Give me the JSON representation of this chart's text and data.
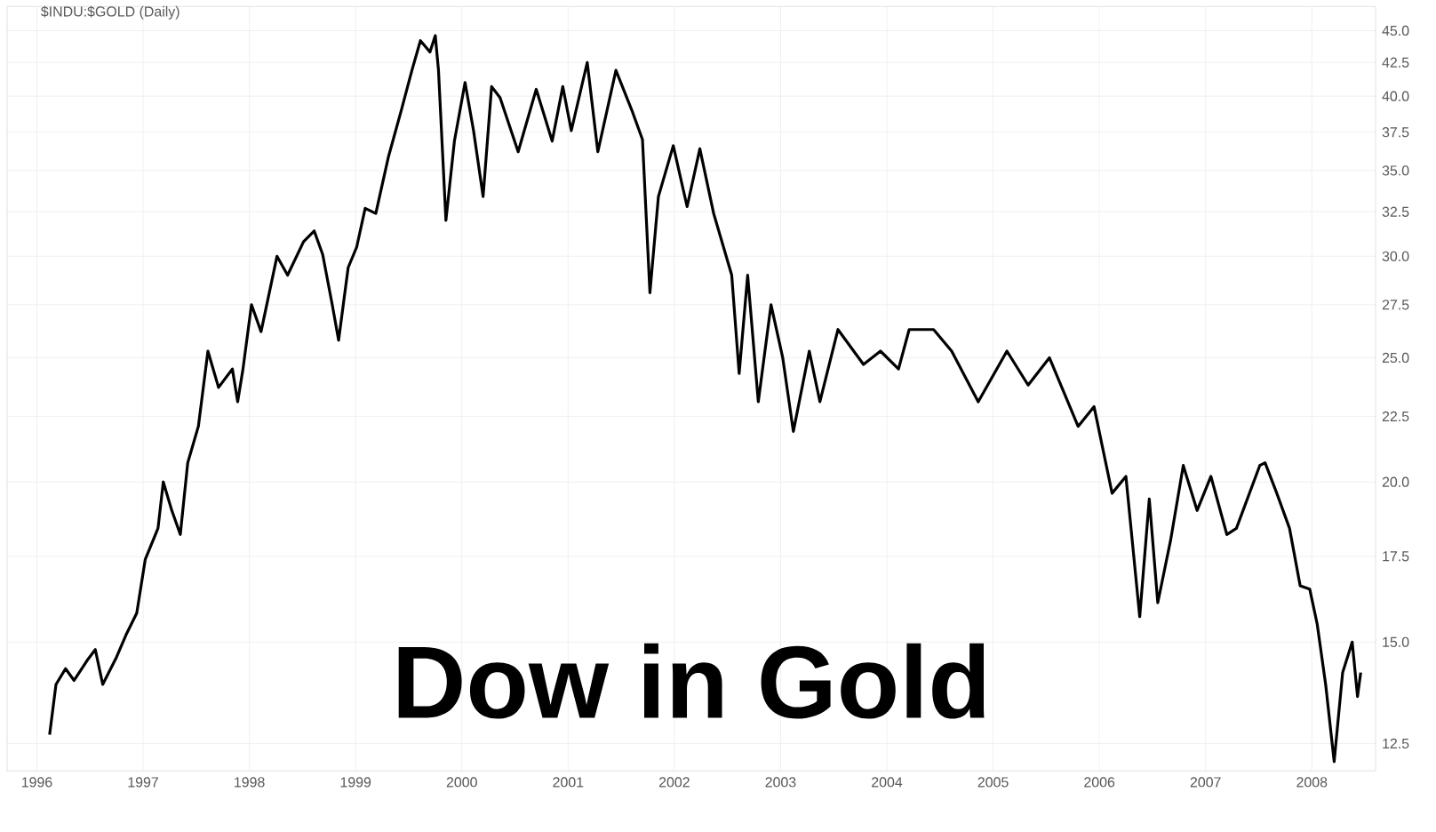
{
  "chart_data": {
    "type": "line",
    "title": "$INDU:$GOLD (Daily)",
    "annotations": [
      "Dow in Gold"
    ],
    "x": [
      1996.12,
      1996.18,
      1996.27,
      1996.35,
      1996.47,
      1996.55,
      1996.62,
      1996.75,
      1996.84,
      1996.94,
      1997.02,
      1997.14,
      1997.19,
      1997.27,
      1997.35,
      1997.42,
      1997.52,
      1997.61,
      1997.71,
      1997.84,
      1997.89,
      1997.94,
      1998.02,
      1998.11,
      1998.26,
      1998.36,
      1998.51,
      1998.61,
      1998.69,
      1998.78,
      1998.84,
      1998.93,
      1999.01,
      1999.09,
      1999.19,
      1999.31,
      1999.43,
      1999.53,
      1999.61,
      1999.7,
      1999.75,
      1999.78,
      1999.85,
      1999.93,
      2000.03,
      2000.11,
      2000.2,
      2000.28,
      2000.36,
      2000.53,
      2000.7,
      2000.85,
      2000.95,
      2001.03,
      2001.18,
      2001.28,
      2001.45,
      2001.6,
      2001.7,
      2001.77,
      2001.85,
      2001.99,
      2002.12,
      2002.24,
      2002.37,
      2002.54,
      2002.61,
      2002.69,
      2002.79,
      2002.91,
      2003.02,
      2003.12,
      2003.27,
      2003.37,
      2003.54,
      2003.78,
      2003.94,
      2004.11,
      2004.21,
      2004.38,
      2004.44,
      2004.61,
      2004.86,
      2005.13,
      2005.33,
      2005.53,
      2005.8,
      2005.95,
      2006.12,
      2006.25,
      2006.38,
      2006.47,
      2006.55,
      2006.67,
      2006.79,
      2006.92,
      2007.05,
      2007.2,
      2007.29,
      2007.51,
      2007.56,
      2007.67,
      2007.79,
      2007.89,
      2007.98,
      2008.05,
      2008.13,
      2008.21,
      2008.29,
      2008.38,
      2008.43,
      2008.46
    ],
    "values": [
      12.7,
      13.9,
      14.3,
      14.0,
      14.5,
      14.8,
      13.9,
      14.6,
      15.2,
      15.8,
      17.4,
      18.4,
      20.0,
      19.0,
      18.2,
      20.7,
      22.1,
      25.3,
      23.7,
      24.5,
      23.1,
      24.5,
      27.5,
      26.2,
      30.0,
      29.0,
      30.8,
      31.4,
      30.1,
      27.5,
      25.8,
      29.4,
      30.5,
      32.7,
      32.4,
      35.9,
      39.0,
      41.9,
      44.2,
      43.3,
      44.6,
      41.9,
      32.0,
      36.9,
      41.0,
      37.6,
      33.4,
      40.7,
      39.9,
      36.2,
      40.5,
      36.9,
      40.7,
      37.6,
      42.5,
      36.2,
      41.9,
      39.0,
      37.0,
      28.1,
      33.4,
      36.6,
      32.8,
      36.4,
      32.4,
      29.0,
      24.3,
      29.0,
      23.1,
      27.5,
      25.0,
      21.9,
      25.3,
      23.1,
      26.3,
      24.7,
      25.3,
      24.5,
      26.3,
      26.3,
      26.3,
      25.3,
      23.1,
      25.3,
      23.8,
      25.0,
      22.1,
      22.9,
      19.6,
      20.2,
      15.7,
      19.4,
      16.1,
      18.0,
      20.6,
      19.0,
      20.2,
      18.2,
      18.4,
      20.6,
      20.7,
      19.6,
      18.4,
      16.6,
      16.5,
      15.5,
      13.9,
      12.1,
      14.2,
      15.0,
      13.6,
      14.2
    ],
    "color": "#000000",
    "log": "y",
    "xlim": [
      1995.72,
      2008.6
    ],
    "ylim": [
      11.9,
      47
    ],
    "xticks": [
      1996,
      1997,
      1998,
      1999,
      2000,
      2001,
      2002,
      2003,
      2004,
      2005,
      2006,
      2007,
      2008
    ],
    "yticks": [
      {
        "value": 12.5,
        "label": "12.5"
      },
      {
        "value": 15,
        "label": "15.0"
      },
      {
        "value": 17.5,
        "label": "17.5"
      },
      {
        "value": 20,
        "label": "20.0"
      },
      {
        "value": 22.5,
        "label": "22.5"
      },
      {
        "value": 25,
        "label": "25.0"
      },
      {
        "value": 27.5,
        "label": "27.5"
      },
      {
        "value": 30,
        "label": "30.0"
      },
      {
        "value": 32.5,
        "label": "32.5"
      },
      {
        "value": 35,
        "label": "35.0"
      },
      {
        "value": 37.5,
        "label": "37.5"
      },
      {
        "value": 40,
        "label": "40.0"
      },
      {
        "value": 42.5,
        "label": "42.5"
      },
      {
        "value": 45,
        "label": "45.0"
      }
    ],
    "grid": true
  }
}
